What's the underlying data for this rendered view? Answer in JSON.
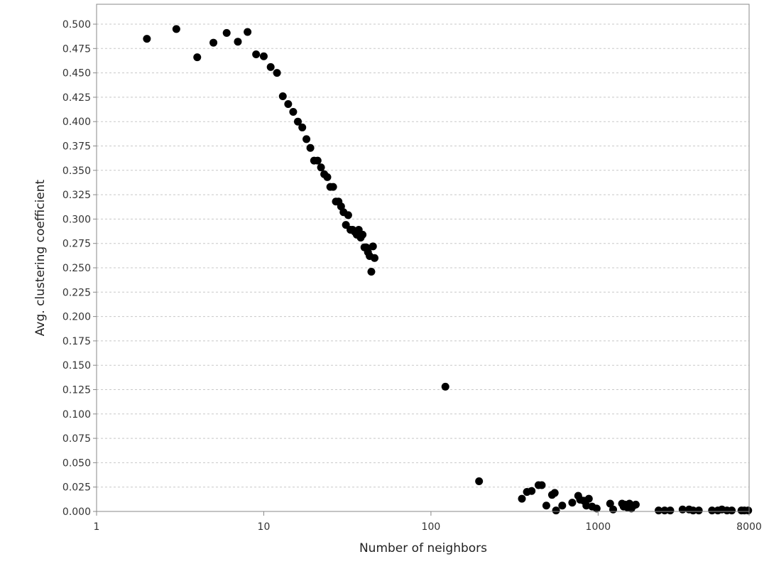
{
  "chart_data": {
    "type": "scatter",
    "title": "",
    "xlabel": "Number of neighbors",
    "ylabel": "Avg. clustering coefficient",
    "x_scale": "log",
    "xlim": [
      1,
      8000
    ],
    "ylim": [
      0,
      0.515
    ],
    "x_ticks": [
      1,
      10,
      100,
      1000,
      8000
    ],
    "x_tick_labels": [
      "1",
      "10",
      "100",
      "1000",
      "8000"
    ],
    "y_ticks": [
      0,
      0.025,
      0.05,
      0.075,
      0.1,
      0.125,
      0.15,
      0.175,
      0.2,
      0.225,
      0.25,
      0.275,
      0.3,
      0.325,
      0.35,
      0.375,
      0.4,
      0.425,
      0.45,
      0.475,
      0.5
    ],
    "y_tick_labels": [
      "0.000",
      "0.025",
      "0.050",
      "0.075",
      "0.100",
      "0.125",
      "0.150",
      "0.175",
      "0.200",
      "0.225",
      "0.250",
      "0.275",
      "0.300",
      "0.325",
      "0.350",
      "0.375",
      "0.400",
      "0.425",
      "0.450",
      "0.475",
      "0.500"
    ],
    "grid": "horizontal-dashed",
    "legend": "none",
    "marker_color": "#000000",
    "points": [
      [
        2,
        0.485
      ],
      [
        3,
        0.495
      ],
      [
        4,
        0.466
      ],
      [
        5,
        0.481
      ],
      [
        6,
        0.491
      ],
      [
        7,
        0.482
      ],
      [
        8,
        0.492
      ],
      [
        9,
        0.469
      ],
      [
        10,
        0.467
      ],
      [
        11,
        0.456
      ],
      [
        12,
        0.45
      ],
      [
        13,
        0.426
      ],
      [
        14,
        0.418
      ],
      [
        15,
        0.41
      ],
      [
        16,
        0.4
      ],
      [
        17,
        0.394
      ],
      [
        18,
        0.382
      ],
      [
        19,
        0.373
      ],
      [
        20,
        0.36
      ],
      [
        21,
        0.36
      ],
      [
        22,
        0.353
      ],
      [
        23,
        0.346
      ],
      [
        24,
        0.343
      ],
      [
        25,
        0.333
      ],
      [
        26,
        0.333
      ],
      [
        27,
        0.318
      ],
      [
        28,
        0.318
      ],
      [
        29,
        0.313
      ],
      [
        30,
        0.307
      ],
      [
        31,
        0.294
      ],
      [
        32,
        0.304
      ],
      [
        33,
        0.289
      ],
      [
        34,
        0.289
      ],
      [
        35,
        0.287
      ],
      [
        36,
        0.284
      ],
      [
        37,
        0.289
      ],
      [
        38,
        0.281
      ],
      [
        39,
        0.284
      ],
      [
        40,
        0.271
      ],
      [
        41,
        0.271
      ],
      [
        42,
        0.266
      ],
      [
        43,
        0.262
      ],
      [
        44,
        0.246
      ],
      [
        45,
        0.272
      ],
      [
        46,
        0.26
      ],
      [
        122,
        0.128
      ],
      [
        194,
        0.031
      ],
      [
        350,
        0.013
      ],
      [
        375,
        0.02
      ],
      [
        400,
        0.021
      ],
      [
        440,
        0.027
      ],
      [
        460,
        0.027
      ],
      [
        490,
        0.006
      ],
      [
        530,
        0.017
      ],
      [
        550,
        0.019
      ],
      [
        560,
        0.001
      ],
      [
        610,
        0.006
      ],
      [
        700,
        0.009
      ],
      [
        760,
        0.016
      ],
      [
        780,
        0.012
      ],
      [
        820,
        0.011
      ],
      [
        850,
        0.006
      ],
      [
        880,
        0.013
      ],
      [
        920,
        0.005
      ],
      [
        980,
        0.003
      ],
      [
        1180,
        0.008
      ],
      [
        1230,
        0.002
      ],
      [
        1390,
        0.008
      ],
      [
        1420,
        0.005
      ],
      [
        1450,
        0.007
      ],
      [
        1500,
        0.004
      ],
      [
        1540,
        0.008
      ],
      [
        1580,
        0.003
      ],
      [
        1630,
        0.006
      ],
      [
        1680,
        0.007
      ],
      [
        2300,
        0.001
      ],
      [
        2500,
        0.001
      ],
      [
        2700,
        0.001
      ],
      [
        3200,
        0.002
      ],
      [
        3500,
        0.002
      ],
      [
        3700,
        0.001
      ],
      [
        4000,
        0.001
      ],
      [
        4800,
        0.001
      ],
      [
        5200,
        0.001
      ],
      [
        5500,
        0.002
      ],
      [
        5900,
        0.001
      ],
      [
        6300,
        0.001
      ],
      [
        7200,
        0.001
      ],
      [
        7500,
        0.001
      ],
      [
        7900,
        0.001
      ]
    ]
  }
}
